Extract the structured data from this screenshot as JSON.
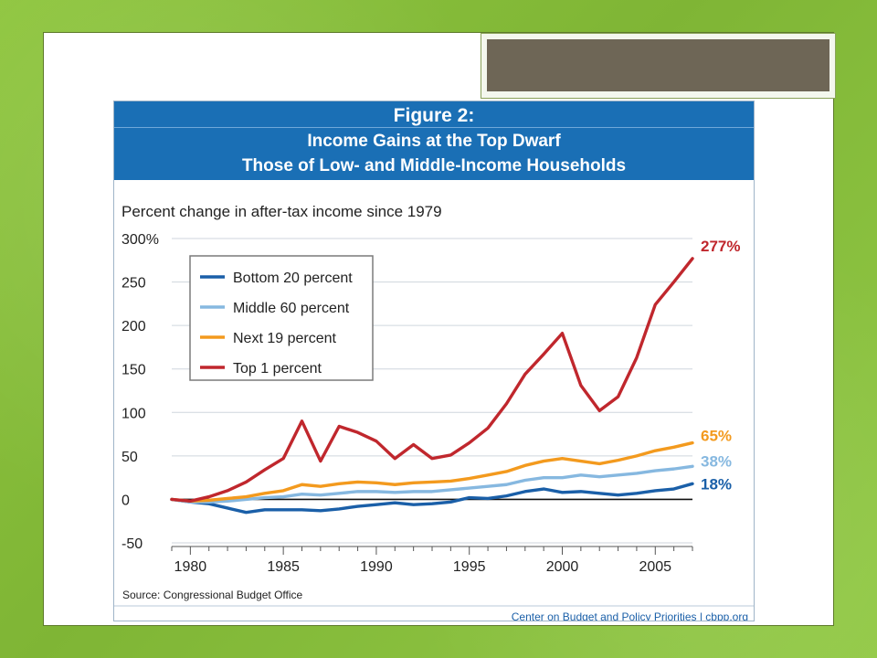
{
  "figure": {
    "label": "Figure 2:",
    "title_line1": "Income Gains at the Top Dwarf",
    "title_line2": "Those of Low- and Middle-Income Households",
    "subtitle": "Percent change in after-tax income since 1979",
    "source": "Source: Congressional Budget Office",
    "credit": "Center on Budget and Policy Priorities | cbpp.org"
  },
  "chart_data": {
    "type": "line",
    "title": "Income Gains at the Top Dwarf Those of Low- and Middle-Income Households",
    "ylabel": "Percent change in after-tax income since 1979",
    "xlim": [
      1979,
      2007
    ],
    "ylim": [
      -50,
      300
    ],
    "yticks": [
      {
        "value": 300,
        "label": "300%"
      },
      {
        "value": 250,
        "label": "250"
      },
      {
        "value": 200,
        "label": "200"
      },
      {
        "value": 150,
        "label": "150"
      },
      {
        "value": 100,
        "label": "100"
      },
      {
        "value": 50,
        "label": "50"
      },
      {
        "value": 0,
        "label": "0"
      },
      {
        "value": -50,
        "label": "-50"
      }
    ],
    "xticks": [
      {
        "value": 1980,
        "label": "1980"
      },
      {
        "value": 1985,
        "label": "1985"
      },
      {
        "value": 1990,
        "label": "1990"
      },
      {
        "value": 1995,
        "label": "1995"
      },
      {
        "value": 2000,
        "label": "2000"
      },
      {
        "value": 2005,
        "label": "2005"
      }
    ],
    "grid": true,
    "legend_position": "top-left",
    "x": [
      1979,
      1980,
      1981,
      1982,
      1983,
      1984,
      1985,
      1986,
      1987,
      1988,
      1989,
      1990,
      1991,
      1992,
      1993,
      1994,
      1995,
      1996,
      1997,
      1998,
      1999,
      2000,
      2001,
      2002,
      2003,
      2004,
      2005,
      2006,
      2007
    ],
    "series": [
      {
        "name": "Bottom 20 percent",
        "color": "#1a5fa8",
        "end_label": "18%",
        "values": [
          0,
          -3,
          -5,
          -10,
          -15,
          -12,
          -12,
          -12,
          -13,
          -11,
          -8,
          -6,
          -4,
          -6,
          -5,
          -3,
          2,
          1,
          4,
          9,
          12,
          8,
          9,
          7,
          5,
          7,
          10,
          12,
          18
        ]
      },
      {
        "name": "Middle 60 percent",
        "color": "#86b8e0",
        "end_label": "38%",
        "values": [
          0,
          -3,
          -3,
          -2,
          0,
          2,
          3,
          6,
          5,
          7,
          9,
          9,
          8,
          9,
          9,
          11,
          13,
          15,
          17,
          22,
          25,
          25,
          28,
          26,
          28,
          30,
          33,
          35,
          38
        ]
      },
      {
        "name": "Next 19 percent",
        "color": "#f39a1e",
        "end_label": "65%",
        "values": [
          0,
          -2,
          -1,
          1,
          3,
          7,
          10,
          17,
          15,
          18,
          20,
          19,
          17,
          19,
          20,
          21,
          24,
          28,
          32,
          39,
          44,
          47,
          44,
          41,
          45,
          50,
          56,
          60,
          65
        ]
      },
      {
        "name": "Top 1 percent",
        "color": "#c0272d",
        "end_label": "277%",
        "values": [
          0,
          -2,
          3,
          10,
          20,
          34,
          47,
          90,
          44,
          84,
          77,
          67,
          47,
          63,
          47,
          51,
          65,
          82,
          110,
          144,
          167,
          191,
          131,
          102,
          118,
          163,
          224,
          250,
          277
        ]
      }
    ]
  }
}
